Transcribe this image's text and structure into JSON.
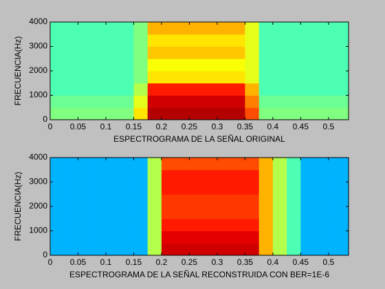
{
  "chart_data": [
    {
      "type": "heatmap",
      "colormap": "jet",
      "xlabel": "ESPECTROGRAMA DE LA SEÑAL ORIGINAL",
      "ylabel": "FRECUENCIA(Hz)",
      "xlim": [
        0,
        0.536
      ],
      "ylim": [
        0,
        4000
      ],
      "xticks": [
        0,
        0.05,
        0.1,
        0.15,
        0.2,
        0.25,
        0.3,
        0.35,
        0.4,
        0.45,
        0.5
      ],
      "yticks": [
        0,
        1000,
        2000,
        3000,
        4000
      ],
      "x_edges": [
        0,
        0.025,
        0.05,
        0.075,
        0.1,
        0.125,
        0.15,
        0.175,
        0.2,
        0.225,
        0.25,
        0.275,
        0.3,
        0.325,
        0.35,
        0.375,
        0.4,
        0.425,
        0.45,
        0.475,
        0.5,
        0.525,
        0.536
      ],
      "y_edges": [
        0,
        500,
        1000,
        1500,
        2000,
        2500,
        3000,
        3500,
        4000
      ],
      "z": [
        [
          0.5,
          0.5,
          0.5,
          0.5,
          0.5,
          0.5,
          0.65,
          0.95,
          0.95,
          0.95,
          0.95,
          0.95,
          0.95,
          0.95,
          0.8,
          0.5,
          0.5,
          0.5,
          0.5,
          0.5,
          0.5,
          0.5
        ],
        [
          0.48,
          0.48,
          0.48,
          0.48,
          0.48,
          0.48,
          0.6,
          0.92,
          0.92,
          0.92,
          0.92,
          0.92,
          0.92,
          0.92,
          0.75,
          0.48,
          0.48,
          0.48,
          0.48,
          0.48,
          0.48,
          0.48
        ],
        [
          0.45,
          0.45,
          0.45,
          0.45,
          0.45,
          0.45,
          0.55,
          0.85,
          0.85,
          0.85,
          0.85,
          0.85,
          0.85,
          0.85,
          0.7,
          0.45,
          0.45,
          0.45,
          0.45,
          0.45,
          0.45,
          0.45
        ],
        [
          0.45,
          0.45,
          0.45,
          0.45,
          0.45,
          0.45,
          0.5,
          0.65,
          0.65,
          0.65,
          0.65,
          0.65,
          0.65,
          0.65,
          0.6,
          0.45,
          0.45,
          0.45,
          0.45,
          0.45,
          0.45,
          0.45
        ],
        [
          0.45,
          0.45,
          0.45,
          0.45,
          0.45,
          0.45,
          0.5,
          0.62,
          0.62,
          0.62,
          0.62,
          0.62,
          0.62,
          0.62,
          0.6,
          0.45,
          0.45,
          0.45,
          0.45,
          0.45,
          0.45,
          0.45
        ],
        [
          0.45,
          0.45,
          0.45,
          0.45,
          0.45,
          0.45,
          0.5,
          0.68,
          0.68,
          0.68,
          0.68,
          0.68,
          0.68,
          0.68,
          0.6,
          0.45,
          0.45,
          0.45,
          0.45,
          0.45,
          0.45,
          0.45
        ],
        [
          0.45,
          0.45,
          0.45,
          0.45,
          0.45,
          0.45,
          0.5,
          0.65,
          0.65,
          0.65,
          0.65,
          0.65,
          0.65,
          0.65,
          0.6,
          0.45,
          0.45,
          0.45,
          0.45,
          0.45,
          0.45,
          0.45
        ],
        [
          0.45,
          0.45,
          0.45,
          0.45,
          0.45,
          0.45,
          0.5,
          0.7,
          0.7,
          0.7,
          0.7,
          0.7,
          0.7,
          0.7,
          0.6,
          0.45,
          0.45,
          0.45,
          0.45,
          0.45,
          0.45,
          0.45
        ]
      ]
    },
    {
      "type": "heatmap",
      "colormap": "jet",
      "xlabel": "ESPECTROGRAMA DE LA SEÑAL RECONSTRUIDA CON BER=1E-6",
      "ylabel": "FRECUENCIA(Hz)",
      "xlim": [
        0,
        0.536
      ],
      "ylim": [
        0,
        4000
      ],
      "xticks": [
        0,
        0.05,
        0.1,
        0.15,
        0.2,
        0.25,
        0.3,
        0.35,
        0.4,
        0.45,
        0.5
      ],
      "yticks": [
        0,
        1000,
        2000,
        3000,
        4000
      ],
      "x_edges": [
        0,
        0.025,
        0.05,
        0.075,
        0.1,
        0.125,
        0.15,
        0.175,
        0.2,
        0.225,
        0.25,
        0.275,
        0.3,
        0.325,
        0.35,
        0.375,
        0.4,
        0.425,
        0.45,
        0.475,
        0.5,
        0.525,
        0.536
      ],
      "y_edges": [
        0,
        500,
        1000,
        1500,
        2000,
        2500,
        3000,
        3500,
        4000
      ],
      "z": [
        [
          0.3,
          0.3,
          0.3,
          0.3,
          0.3,
          0.3,
          0.3,
          0.55,
          0.92,
          0.92,
          0.92,
          0.92,
          0.92,
          0.92,
          0.92,
          0.7,
          0.55,
          0.45,
          0.3,
          0.3,
          0.3,
          0.3
        ],
        [
          0.3,
          0.3,
          0.3,
          0.3,
          0.3,
          0.3,
          0.3,
          0.55,
          0.9,
          0.9,
          0.9,
          0.9,
          0.9,
          0.9,
          0.9,
          0.7,
          0.55,
          0.45,
          0.3,
          0.3,
          0.3,
          0.3
        ],
        [
          0.3,
          0.3,
          0.3,
          0.3,
          0.3,
          0.3,
          0.3,
          0.55,
          0.85,
          0.85,
          0.85,
          0.85,
          0.85,
          0.85,
          0.85,
          0.7,
          0.55,
          0.45,
          0.3,
          0.3,
          0.3,
          0.3
        ],
        [
          0.3,
          0.3,
          0.3,
          0.3,
          0.3,
          0.3,
          0.3,
          0.55,
          0.82,
          0.82,
          0.82,
          0.82,
          0.82,
          0.82,
          0.82,
          0.7,
          0.55,
          0.45,
          0.3,
          0.3,
          0.3,
          0.3
        ],
        [
          0.3,
          0.3,
          0.3,
          0.3,
          0.3,
          0.3,
          0.3,
          0.55,
          0.82,
          0.82,
          0.82,
          0.82,
          0.82,
          0.82,
          0.82,
          0.7,
          0.55,
          0.45,
          0.3,
          0.3,
          0.3,
          0.3
        ],
        [
          0.3,
          0.3,
          0.3,
          0.3,
          0.3,
          0.3,
          0.3,
          0.55,
          0.85,
          0.85,
          0.85,
          0.85,
          0.85,
          0.85,
          0.85,
          0.7,
          0.55,
          0.45,
          0.3,
          0.3,
          0.3,
          0.3
        ],
        [
          0.3,
          0.3,
          0.3,
          0.3,
          0.3,
          0.3,
          0.3,
          0.55,
          0.85,
          0.85,
          0.85,
          0.85,
          0.85,
          0.85,
          0.85,
          0.7,
          0.55,
          0.45,
          0.3,
          0.3,
          0.3,
          0.3
        ],
        [
          0.3,
          0.3,
          0.3,
          0.3,
          0.3,
          0.3,
          0.3,
          0.55,
          0.8,
          0.8,
          0.8,
          0.8,
          0.8,
          0.8,
          0.8,
          0.7,
          0.55,
          0.45,
          0.3,
          0.3,
          0.3,
          0.3
        ]
      ]
    }
  ]
}
